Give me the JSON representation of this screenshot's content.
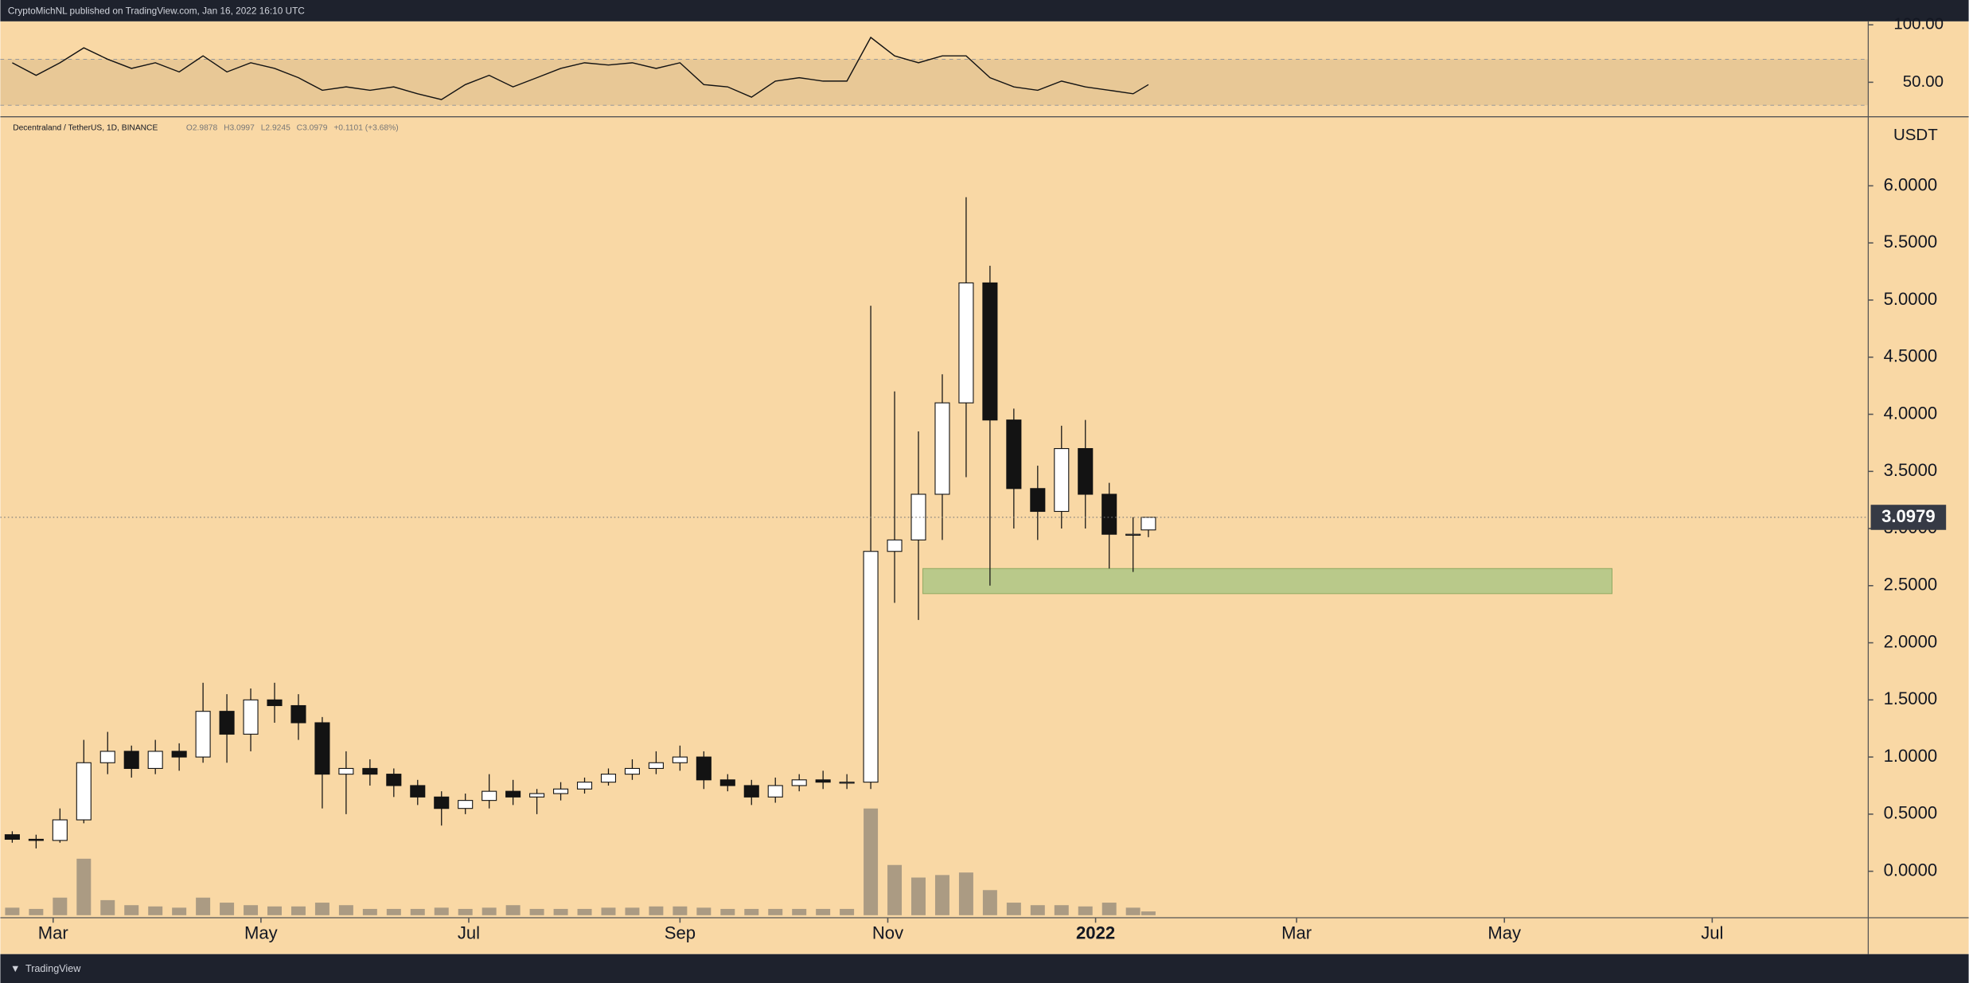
{
  "page": {
    "publisher": "CryptoMichNL published on TradingView.com, Jan 16, 2022 16:10 UTC",
    "brand": "TradingView"
  },
  "chart_data": {
    "type": "candlestick",
    "symbol": "Decentraland / TetherUS, 1D, BINANCE",
    "ohlc_labels": [
      "O2.9878",
      "H3.0997",
      "L2.9245",
      "C3.0979"
    ],
    "change_label": "+0.1101 (+3.68%)",
    "currency": "USDT",
    "last_price": 3.0979,
    "xlim": [
      0,
      548.3
    ],
    "xticks": [
      {
        "value": 15.5,
        "label": "Mar"
      },
      {
        "value": 76.5,
        "label": "May"
      },
      {
        "value": 137.5,
        "label": "Jul"
      },
      {
        "value": 199.5,
        "label": "Sep"
      },
      {
        "value": 260.5,
        "label": "Nov"
      },
      {
        "value": 321.5,
        "label": "2022"
      },
      {
        "value": 380.5,
        "label": "Mar"
      },
      {
        "value": 441.5,
        "label": "May"
      },
      {
        "value": 502.5,
        "label": "Jul"
      }
    ],
    "bold_tick": "2022",
    "ylim": [
      -0.4066,
      6.6044
    ],
    "yticks": [
      {
        "value": 0,
        "label": "0.0000"
      },
      {
        "value": 0.5,
        "label": "0.5000"
      },
      {
        "value": 1,
        "label": "1.0000"
      },
      {
        "value": 1.5,
        "label": "1.5000"
      },
      {
        "value": 2,
        "label": "2.0000"
      },
      {
        "value": 2.5,
        "label": "2.5000"
      },
      {
        "value": 3,
        "label": "3.0000"
      },
      {
        "value": 3.5,
        "label": "3.5000"
      },
      {
        "value": 4,
        "label": "4.0000"
      },
      {
        "value": 4.5,
        "label": "4.5000"
      },
      {
        "value": 5,
        "label": "5.0000"
      },
      {
        "value": 5.5,
        "label": "5.5000"
      },
      {
        "value": 6,
        "label": "6.0000"
      }
    ],
    "x": [
      3.5,
      10.5,
      17.5,
      24.5,
      31.5,
      38.5,
      45.5,
      52.5,
      59.5,
      66.5,
      73.5,
      80.5,
      87.5,
      94.5,
      101.5,
      108.5,
      115.5,
      122.5,
      129.5,
      136.5,
      143.5,
      150.5,
      157.5,
      164.5,
      171.5,
      178.5,
      185.5,
      192.5,
      199.5,
      206.5,
      213.5,
      220.5,
      227.5,
      234.5,
      241.5,
      248.5,
      255.5,
      262.5,
      269.5,
      276.5,
      283.5,
      290.5,
      297.5,
      304.5,
      311.5,
      318.5,
      325.5,
      332.5,
      337
    ],
    "open": [
      0.32,
      0.28,
      0.27,
      0.45,
      0.95,
      1.05,
      0.9,
      1.05,
      1.0,
      1.4,
      1.2,
      1.5,
      1.45,
      1.3,
      0.85,
      0.9,
      0.85,
      0.75,
      0.65,
      0.55,
      0.62,
      0.7,
      0.65,
      0.68,
      0.72,
      0.78,
      0.85,
      0.9,
      0.95,
      1.0,
      0.8,
      0.75,
      0.65,
      0.75,
      0.8,
      0.78,
      0.78,
      2.8,
      2.9,
      3.3,
      4.1,
      5.15,
      3.95,
      3.35,
      3.15,
      3.7,
      3.3,
      2.95,
      2.9878
    ],
    "high": [
      0.35,
      0.32,
      0.55,
      1.15,
      1.22,
      1.1,
      1.15,
      1.12,
      1.65,
      1.55,
      1.6,
      1.65,
      1.55,
      1.35,
      1.05,
      0.98,
      0.9,
      0.8,
      0.7,
      0.68,
      0.85,
      0.8,
      0.72,
      0.78,
      0.82,
      0.9,
      0.98,
      1.05,
      1.1,
      1.05,
      0.85,
      0.8,
      0.82,
      0.85,
      0.88,
      0.85,
      4.95,
      4.2,
      3.85,
      4.35,
      5.9,
      5.3,
      4.05,
      3.55,
      3.9,
      3.95,
      3.4,
      3.1,
      3.0997
    ],
    "low": [
      0.25,
      0.2,
      0.25,
      0.42,
      0.85,
      0.82,
      0.85,
      0.88,
      0.95,
      0.95,
      1.05,
      1.3,
      1.15,
      0.55,
      0.5,
      0.75,
      0.65,
      0.58,
      0.4,
      0.5,
      0.55,
      0.58,
      0.5,
      0.62,
      0.68,
      0.75,
      0.8,
      0.85,
      0.88,
      0.72,
      0.7,
      0.58,
      0.6,
      0.7,
      0.72,
      0.72,
      0.72,
      2.35,
      2.2,
      2.9,
      3.45,
      2.5,
      3.0,
      2.9,
      3.0,
      3.0,
      2.65,
      2.62,
      2.9245
    ],
    "close": [
      0.28,
      0.27,
      0.45,
      0.95,
      1.05,
      0.9,
      1.05,
      1.0,
      1.4,
      1.2,
      1.5,
      1.45,
      1.3,
      0.85,
      0.9,
      0.85,
      0.75,
      0.65,
      0.55,
      0.62,
      0.7,
      0.65,
      0.68,
      0.72,
      0.78,
      0.85,
      0.9,
      0.95,
      1.0,
      0.8,
      0.75,
      0.65,
      0.75,
      0.8,
      0.78,
      0.78,
      2.8,
      2.9,
      3.3,
      4.1,
      5.15,
      3.95,
      3.35,
      3.15,
      3.7,
      3.3,
      2.95,
      2.95,
      3.0979
    ],
    "volume": {
      "ylim": [
        0,
        100
      ],
      "color": "#8a8275",
      "values": [
        6,
        5,
        14,
        45,
        12,
        8,
        7,
        6,
        14,
        10,
        8,
        7,
        7,
        10,
        8,
        5,
        5,
        5,
        6,
        5,
        6,
        8,
        5,
        5,
        5,
        6,
        6,
        7,
        7,
        6,
        5,
        5,
        5,
        5,
        5,
        5,
        85,
        40,
        30,
        32,
        34,
        20,
        10,
        8,
        8,
        7,
        10,
        6,
        3
      ]
    },
    "rsi": {
      "ylim": [
        20,
        103
      ],
      "band": [
        30,
        70
      ],
      "yticks": [
        {
          "value": 100,
          "label": "100.00"
        },
        {
          "value": 50,
          "label": "50.00"
        }
      ],
      "values": [
        67,
        56,
        67,
        80,
        70,
        62,
        67,
        59,
        73,
        59,
        67,
        62,
        54,
        43,
        46,
        43,
        46,
        40,
        35,
        48,
        56,
        46,
        54,
        62,
        67,
        65,
        67,
        62,
        67,
        48,
        46,
        37,
        51,
        54,
        51,
        51,
        89,
        73,
        67,
        73,
        73,
        54,
        46,
        43,
        51,
        46,
        43,
        40,
        48
      ]
    },
    "zone": {
      "x": [
        270.8,
        473.1
      ],
      "y": [
        2.43,
        2.65
      ],
      "color": "#b9c98a"
    },
    "up_color": "#ffffff",
    "down_color": "#131313",
    "background": "#f9d8a5"
  }
}
